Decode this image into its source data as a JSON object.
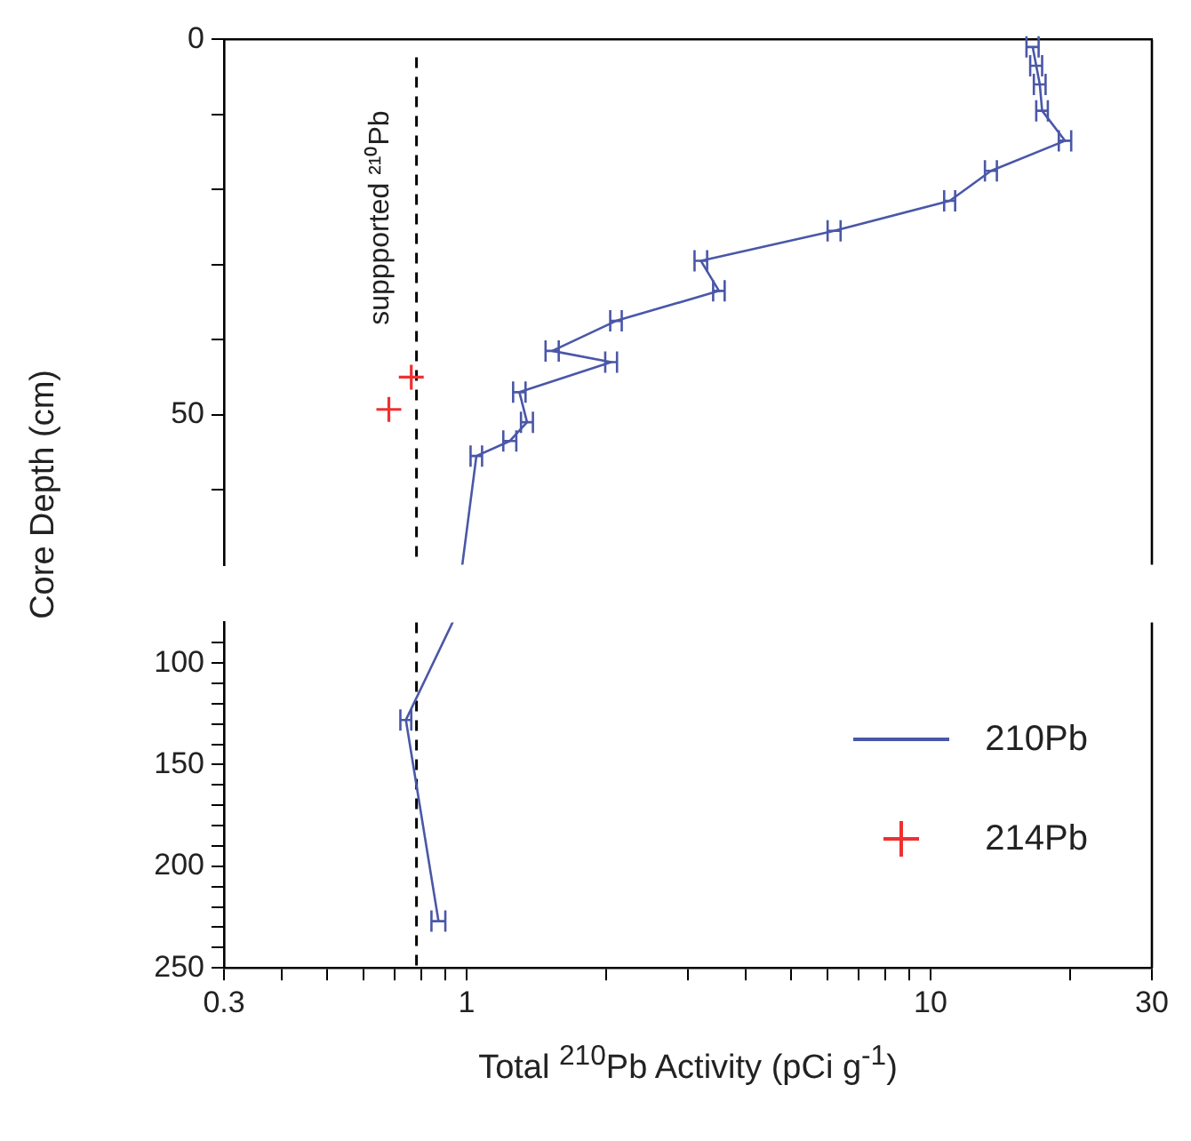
{
  "chart_data": [
    {
      "type": "line",
      "ylabel": "Core Depth (cm)",
      "xlim": [
        0.3,
        30
      ],
      "log": "x",
      "ylim": [
        70,
        0
      ],
      "yticks": [
        0,
        {
          "value": 10,
          "label": null
        },
        {
          "value": 20,
          "label": null
        },
        {
          "value": 30,
          "label": null
        },
        {
          "value": 40,
          "label": null
        },
        50,
        {
          "value": 60,
          "label": null
        }
      ],
      "tick_labels": "y",
      "legend": "bottom right",
      "ref_lines": [
        {
          "axis": "x",
          "value": 0.78,
          "label": "suppported ²¹⁰Pb",
          "line_style": "dashed",
          "color": "#000000"
        }
      ],
      "series": [
        {
          "name": "210Pb",
          "type": "line",
          "color": "#4a57a8",
          "x": [
            16.6,
            16.9,
            17.2,
            17.4,
            19.5,
            13.5,
            11,
            6.2,
            3.2,
            3.5,
            2.1,
            1.53,
            2.05,
            1.3,
            1.35,
            1.24,
            1.05
          ],
          "values": [
            1,
            3.5,
            6,
            9.5,
            13.5,
            17.5,
            21.5,
            25.5,
            29.5,
            33.5,
            37.5,
            41.5,
            43,
            47,
            51,
            53.5,
            55.5
          ],
          "xerrors": [
            0.5,
            0.5,
            0.5,
            0.5,
            0.6,
            0.4,
            0.3,
            0.2,
            0.1,
            0.1,
            0.06,
            0.05,
            0.06,
            0.04,
            0.04,
            0.04,
            0.03
          ]
        },
        {
          "name": "214Pb",
          "type": "scatter",
          "color": "#ee3030",
          "marker": "cross",
          "x": [
            0.76,
            0.68
          ],
          "values": [
            45,
            49.3
          ]
        }
      ]
    },
    {
      "type": "line",
      "xlabel": "Total $^{210}$Pb Activity (pCi g$^{-1}$)",
      "xlim": [
        0.3,
        30
      ],
      "log": "x",
      "xticks": [
        0.3,
        {
          "value": 0.4,
          "label": null
        },
        {
          "value": 0.5,
          "label": null
        },
        {
          "value": 0.6,
          "label": null
        },
        {
          "value": 0.7,
          "label": null
        },
        {
          "value": 0.8,
          "label": null
        },
        {
          "value": 0.9,
          "label": null
        },
        1,
        {
          "value": 2,
          "label": null
        },
        {
          "value": 3,
          "label": null
        },
        {
          "value": 4,
          "label": null
        },
        {
          "value": 5,
          "label": null
        },
        {
          "value": 6,
          "label": null
        },
        {
          "value": 7,
          "label": null
        },
        {
          "value": 8,
          "label": null
        },
        {
          "value": 9,
          "label": null
        },
        10,
        {
          "value": 20,
          "label": null
        },
        30
      ],
      "ylim": [
        250,
        80
      ],
      "yticks": [
        {
          "value": 90,
          "label": null
        },
        100,
        {
          "value": 110,
          "label": null
        },
        {
          "value": 120,
          "label": null
        },
        {
          "value": 130,
          "label": null
        },
        {
          "value": 140,
          "label": null
        },
        150,
        {
          "value": 160,
          "label": null
        },
        {
          "value": 170,
          "label": null
        },
        {
          "value": 180,
          "label": null
        },
        {
          "value": 190,
          "label": null
        },
        200,
        {
          "value": 210,
          "label": null
        },
        {
          "value": 220,
          "label": null
        },
        {
          "value": 230,
          "label": null
        },
        {
          "value": 240,
          "label": null
        },
        250
      ],
      "ref_lines": [
        {
          "axis": "x",
          "value": 0.78,
          "line_style": "dashed",
          "color": "#000000"
        }
      ],
      "series": [
        {
          "type": "line",
          "color": "#4a57a8",
          "x": [
            0.74,
            0.87
          ],
          "values": [
            128,
            227
          ],
          "xerrors": [
            0.02,
            0.03
          ]
        }
      ]
    }
  ]
}
